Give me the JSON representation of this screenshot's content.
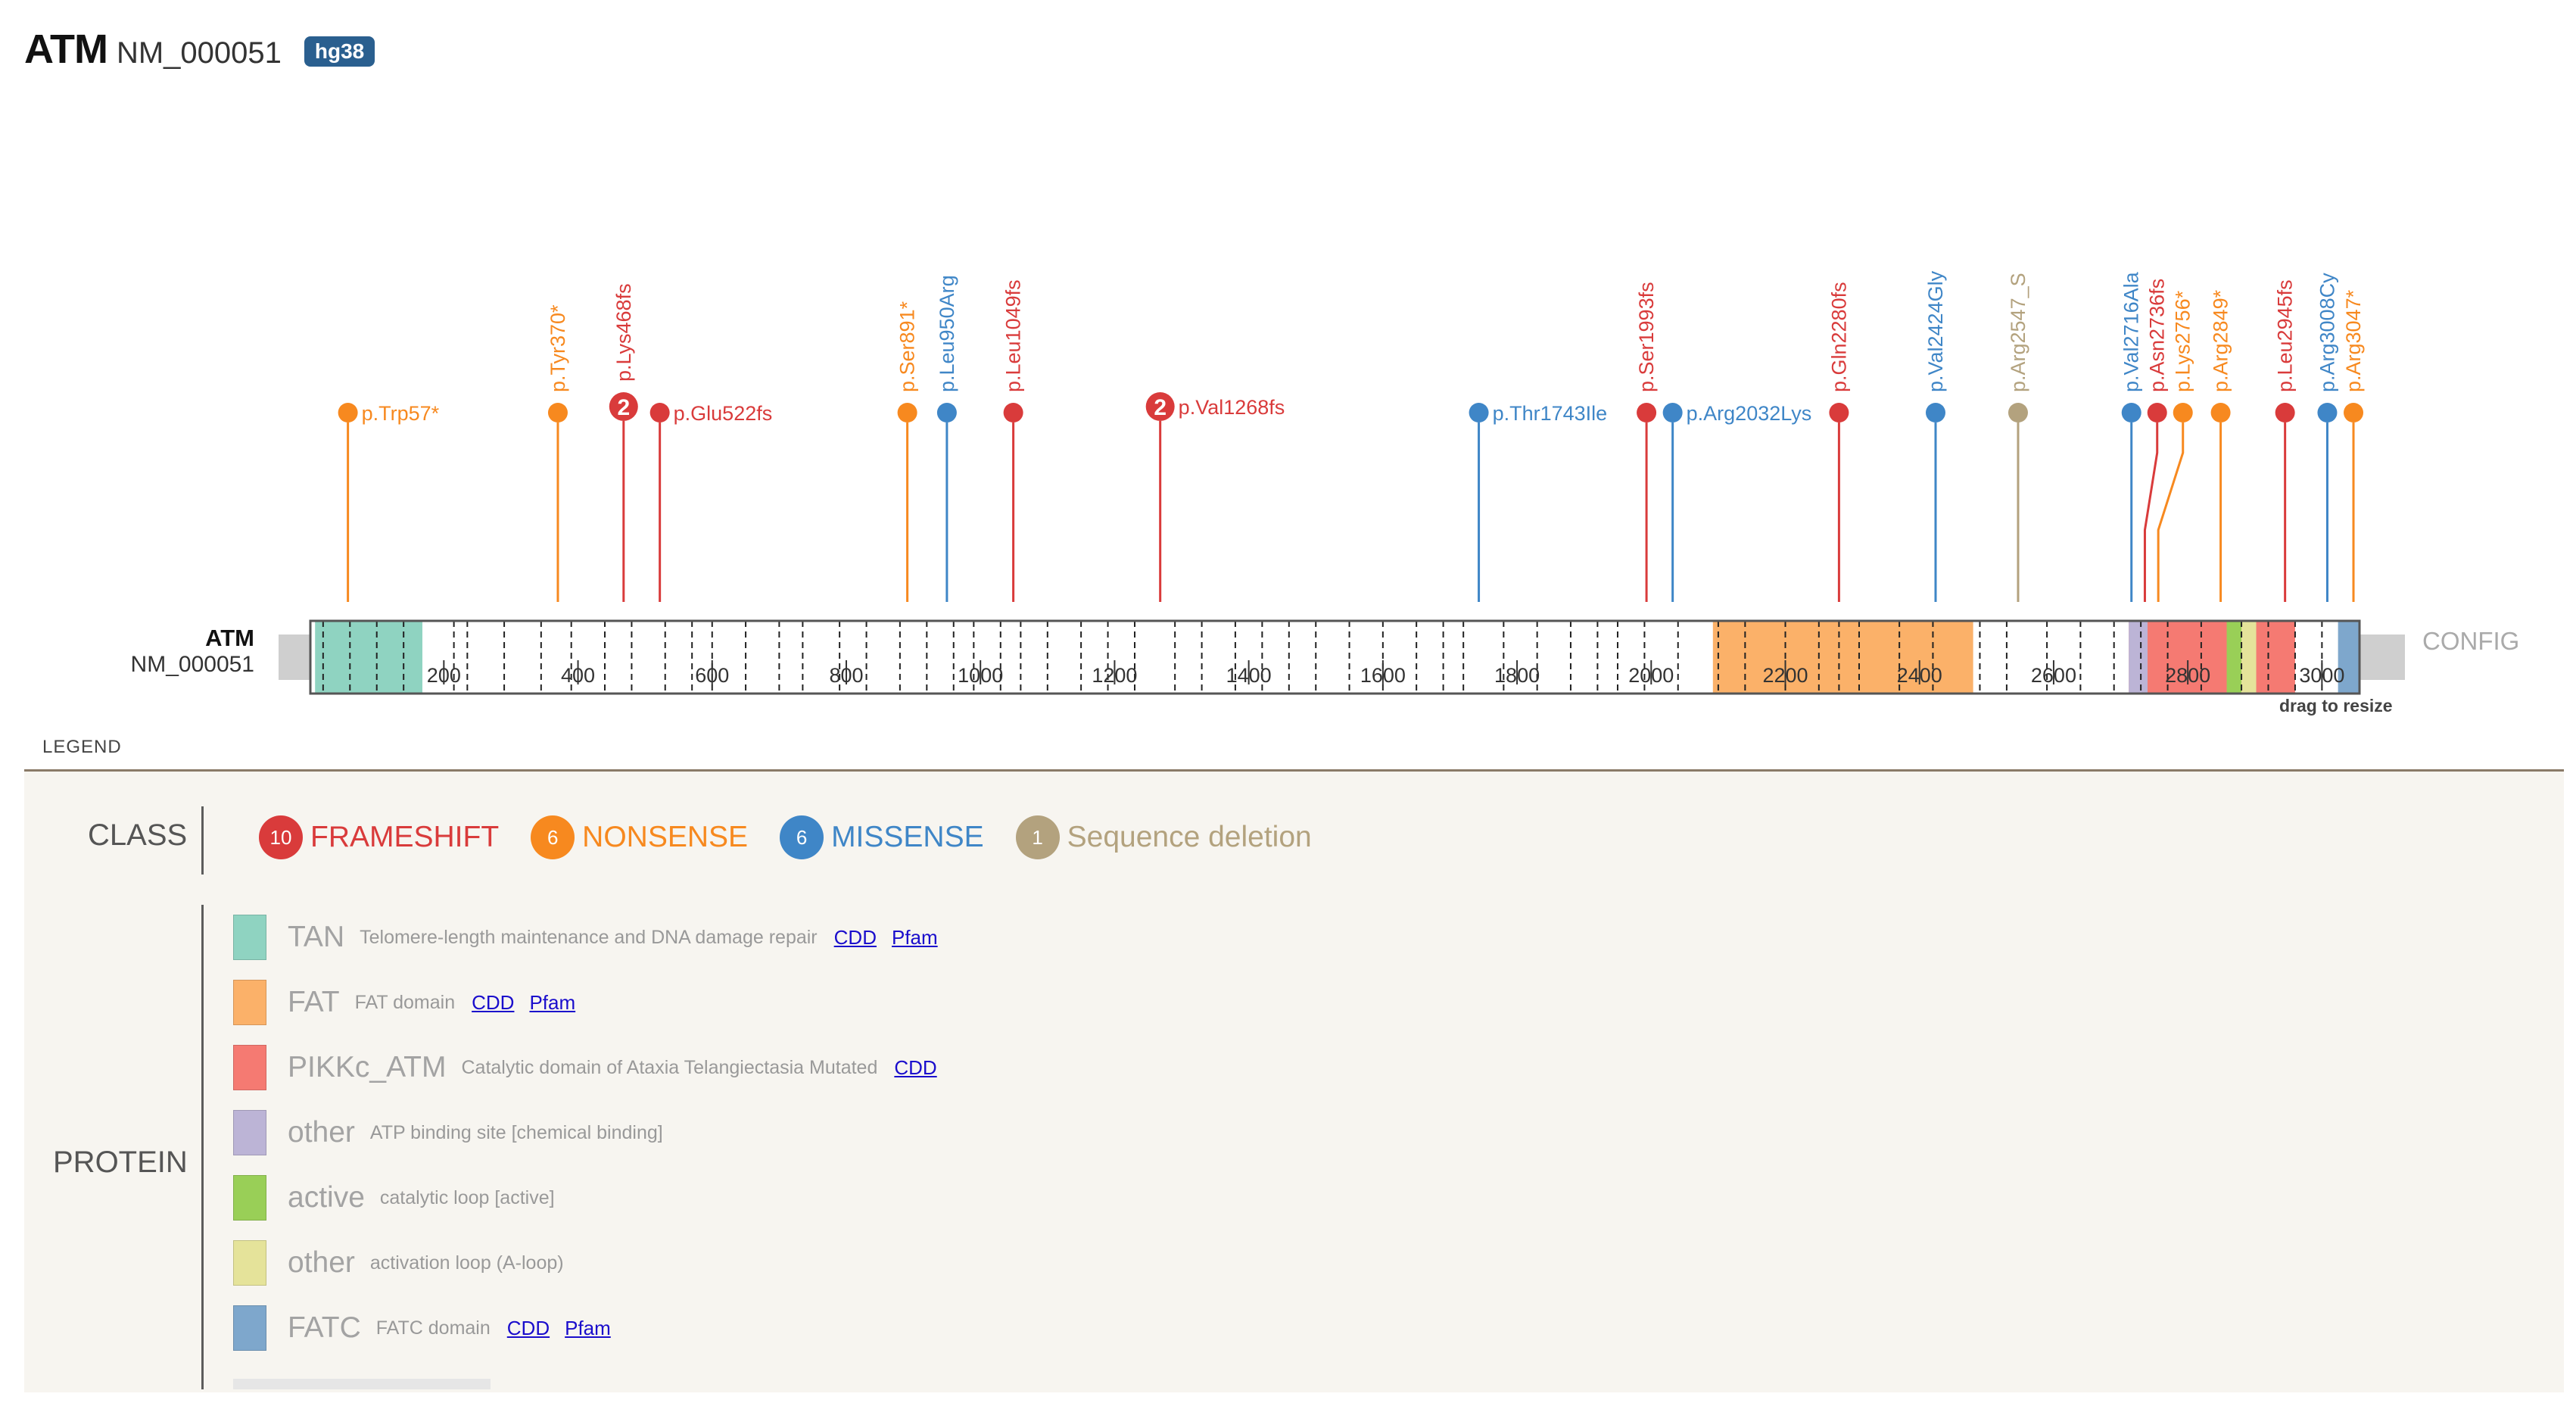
{
  "header": {
    "gene": "ATM",
    "transcript": "NM_000051",
    "genome_build": "hg38"
  },
  "track": {
    "gene_label": "ATM",
    "transcript_label": "NM_000051",
    "config_label": "CONFIG",
    "resize_hint": "drag to resize"
  },
  "colors": {
    "frameshift": "#d93b3b",
    "nonsense": "#f7891f",
    "missense": "#3f86c7",
    "deletion": "#b3a27e",
    "TAN": "#8fd3c1",
    "FAT": "#fbb169",
    "PIKKc_ATM": "#f57a72",
    "ATP_site": "#bcb4d6",
    "active": "#99cf57",
    "activation_loop": "#e5e39a",
    "FATC": "#7ea7cc"
  },
  "chart_data": {
    "type": "lollipop",
    "x_axis": {
      "min": 1,
      "max": 3056,
      "ticks": [
        200,
        400,
        600,
        800,
        1000,
        1200,
        1400,
        1600,
        1800,
        2000,
        2200,
        2400,
        2600,
        2800,
        3000
      ]
    },
    "domains": [
      {
        "name": "TAN",
        "start": 8,
        "end": 168,
        "color": "#8fd3c1"
      },
      {
        "name": "FAT",
        "start": 2092,
        "end": 2480,
        "color": "#fbb169"
      },
      {
        "name": "PIKKc_ATM",
        "start": 2712,
        "end": 2960,
        "color": "#f57a72"
      },
      {
        "name": "other",
        "start": 2712,
        "end": 2740,
        "color": "#bcb4d6"
      },
      {
        "name": "active",
        "start": 2858,
        "end": 2880,
        "color": "#99cf57"
      },
      {
        "name": "other",
        "start": 2880,
        "end": 2902,
        "color": "#e5e39a"
      },
      {
        "name": "FATC",
        "start": 3024,
        "end": 3056,
        "color": "#7ea7cc"
      }
    ],
    "mutations": [
      {
        "label": "p.Trp57*",
        "pos": 57,
        "class": "nonsense",
        "count": 1,
        "orient": "h"
      },
      {
        "label": "p.Tyr370*",
        "pos": 370,
        "class": "nonsense",
        "count": 1,
        "orient": "v"
      },
      {
        "label": "p.Lys468fs",
        "pos": 468,
        "class": "frameshift",
        "count": 2,
        "orient": "v"
      },
      {
        "label": "p.Glu522fs",
        "pos": 522,
        "class": "frameshift",
        "count": 1,
        "orient": "h"
      },
      {
        "label": "p.Ser891*",
        "pos": 891,
        "class": "nonsense",
        "count": 1,
        "orient": "v"
      },
      {
        "label": "p.Leu950Arg",
        "pos": 950,
        "class": "missense",
        "count": 1,
        "orient": "v"
      },
      {
        "label": "p.Leu1049fs",
        "pos": 1049,
        "class": "frameshift",
        "count": 1,
        "orient": "v"
      },
      {
        "label": "p.Val1268fs",
        "pos": 1268,
        "class": "frameshift",
        "count": 2,
        "orient": "h"
      },
      {
        "label": "p.Thr1743Ile",
        "pos": 1743,
        "class": "missense",
        "count": 1,
        "orient": "h"
      },
      {
        "label": "p.Ser1993fs",
        "pos": 1993,
        "class": "frameshift",
        "count": 1,
        "orient": "v"
      },
      {
        "label": "p.Arg2032Lys",
        "pos": 2032,
        "class": "missense",
        "count": 1,
        "orient": "h"
      },
      {
        "label": "p.Gln2280fs",
        "pos": 2280,
        "class": "frameshift",
        "count": 1,
        "orient": "v"
      },
      {
        "label": "p.Val2424Gly",
        "pos": 2424,
        "class": "missense",
        "count": 1,
        "orient": "v"
      },
      {
        "label": "p.Arg2547_S",
        "pos": 2547,
        "class": "deletion",
        "count": 1,
        "orient": "v"
      },
      {
        "label": "p.Val2716Ala",
        "pos": 2716,
        "class": "missense",
        "count": 1,
        "orient": "v"
      },
      {
        "label": "p.Asn2736fs",
        "pos": 2736,
        "class": "frameshift",
        "count": 1,
        "orient": "v"
      },
      {
        "label": "p.Lys2756*",
        "pos": 2756,
        "class": "nonsense",
        "count": 1,
        "orient": "v"
      },
      {
        "label": "p.Arg2849*",
        "pos": 2849,
        "class": "nonsense",
        "count": 1,
        "orient": "v"
      },
      {
        "label": "p.Leu2945fs",
        "pos": 2945,
        "class": "frameshift",
        "count": 1,
        "orient": "v"
      },
      {
        "label": "p.Arg3008Cy",
        "pos": 3008,
        "class": "missense",
        "count": 1,
        "orient": "v"
      },
      {
        "label": "p.Arg3047*",
        "pos": 3047,
        "class": "nonsense",
        "count": 1,
        "orient": "v"
      }
    ],
    "exon_boundaries": [
      20,
      60,
      100,
      140,
      215,
      235,
      290,
      345,
      390,
      440,
      480,
      530,
      570,
      600,
      650,
      700,
      735,
      790,
      830,
      880,
      920,
      960,
      990,
      1030,
      1060,
      1100,
      1150,
      1190,
      1230,
      1290,
      1330,
      1380,
      1420,
      1460,
      1500,
      1550,
      1600,
      1650,
      1690,
      1720,
      1780,
      1830,
      1880,
      1920,
      1950,
      1990,
      2040,
      2100,
      2140,
      2200,
      2250,
      2280,
      2310,
      2370,
      2420,
      2490,
      2530,
      2590,
      2640,
      2690,
      2730,
      2770,
      2820,
      2880,
      2920,
      2960,
      3000
    ]
  },
  "legend": {
    "title": "LEGEND",
    "class_label": "CLASS",
    "protein_label": "PROTEIN",
    "classes": [
      {
        "count": "10",
        "name": "FRAMESHIFT",
        "color": "#d93b3b"
      },
      {
        "count": "6",
        "name": "NONSENSE",
        "color": "#f7891f"
      },
      {
        "count": "6",
        "name": "MISSENSE",
        "color": "#3f86c7"
      },
      {
        "count": "1",
        "name": "Sequence deletion",
        "color": "#b3a27e"
      }
    ],
    "domains": [
      {
        "name": "TAN",
        "desc": "Telomere-length maintenance and DNA damage repair",
        "color": "#8fd3c1",
        "links": [
          "CDD",
          "Pfam"
        ]
      },
      {
        "name": "FAT",
        "desc": "FAT domain",
        "color": "#fbb169",
        "links": [
          "CDD",
          "Pfam"
        ]
      },
      {
        "name": "PIKKc_ATM",
        "desc": "Catalytic domain of Ataxia Telangiectasia Mutated",
        "color": "#f57a72",
        "links": [
          "CDD"
        ]
      },
      {
        "name": "other",
        "desc": "ATP binding site [chemical binding]",
        "color": "#bcb4d6",
        "links": []
      },
      {
        "name": "active",
        "desc": "catalytic loop [active]",
        "color": "#99cf57",
        "links": []
      },
      {
        "name": "other",
        "desc": "activation loop (A-loop)",
        "color": "#e5e39a",
        "links": []
      },
      {
        "name": "FATC",
        "desc": "FATC domain",
        "color": "#7ea7cc",
        "links": [
          "CDD",
          "Pfam"
        ]
      }
    ]
  }
}
